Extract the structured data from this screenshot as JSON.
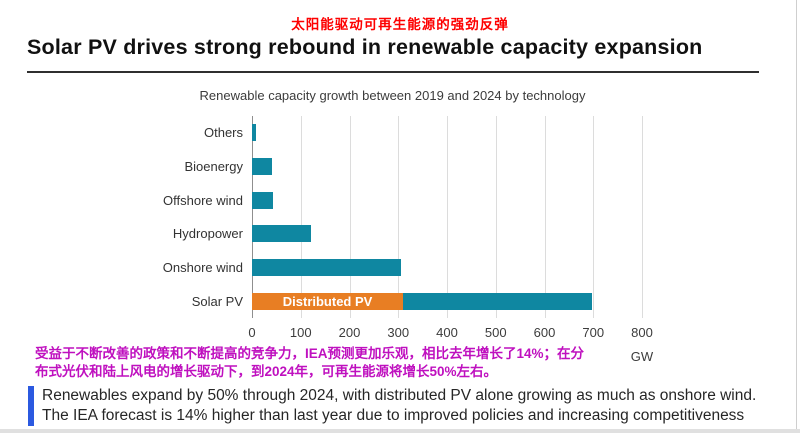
{
  "page": {
    "cn_headline": "太阳能驱动可再生能源的强劲反弹",
    "title": "Solar PV drives strong rebound in renewable capacity expansion"
  },
  "chart_data": {
    "type": "bar",
    "orientation": "horizontal",
    "title": "Renewable capacity growth between 2019 and 2024 by technology",
    "unit": "GW",
    "xlim": [
      0,
      800
    ],
    "xticks": [
      0,
      100,
      200,
      300,
      400,
      500,
      600,
      700,
      800
    ],
    "grid": true,
    "legend": "none",
    "categories": [
      "Others",
      "Bioenergy",
      "Offshore wind",
      "Hydropower",
      "Onshore wind",
      "Solar PV"
    ],
    "values": [
      8,
      40,
      43,
      121,
      305,
      697
    ],
    "bar_color": "#0f87a1",
    "solar_segments": [
      {
        "label": "Distributed PV",
        "value": 310,
        "color": "#e87e23"
      },
      {
        "label": "",
        "value": 387,
        "color": "#0f87a1"
      }
    ],
    "colors": {
      "teal": "#0f87a1",
      "orange": "#e87e23"
    }
  },
  "cn_note": {
    "line1": "受益于不断改善的政策和不断提高的竞争力，IEA预测更加乐观，相比去年增长了14%；在分",
    "line2": "布式光伏和陆上风电的增长驱动下，到2024年，可再生能源将增长50%左右。",
    "color": "#bf10bf"
  },
  "callout": {
    "line1": "Renewables expand by 50% through 2024, with distributed PV alone growing as much as onshore wind.",
    "line2": "The IEA forecast is 14% higher than last year due to improved policies and increasing competitiveness",
    "accent_color": "#2b59e0"
  }
}
